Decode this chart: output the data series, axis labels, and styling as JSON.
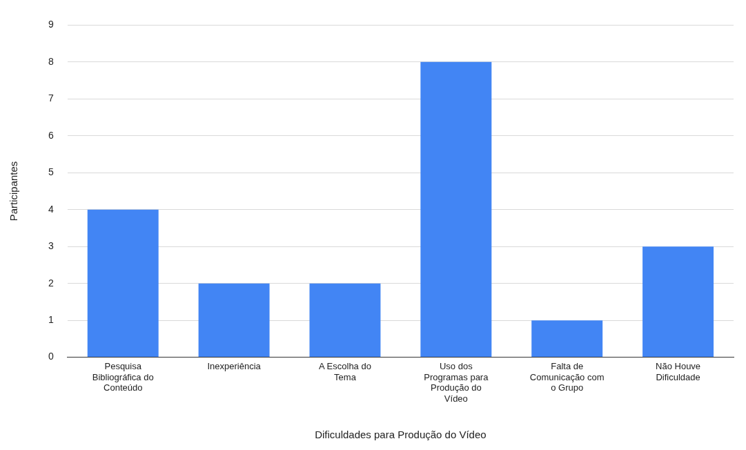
{
  "chart_data": {
    "type": "bar",
    "xlabel": "Dificuldades para Produção do Vídeo",
    "ylabel": "Participantes",
    "categories": [
      "Pesquisa Bibliográfica do Conteúdo",
      "Inexperiência",
      "A Escolha do Tema",
      "Uso dos Programas para Produção do Vídeo",
      "Falta de Comunicação com o Grupo",
      "Não Houve Dificuldade"
    ],
    "values": [
      4,
      2,
      2,
      8,
      1,
      3
    ],
    "color": "#4285f4",
    "ylim": [
      0,
      9
    ],
    "yticks": [
      0,
      1,
      2,
      3,
      4,
      5,
      6,
      7,
      8,
      9
    ],
    "grid": "y",
    "legend": false
  }
}
